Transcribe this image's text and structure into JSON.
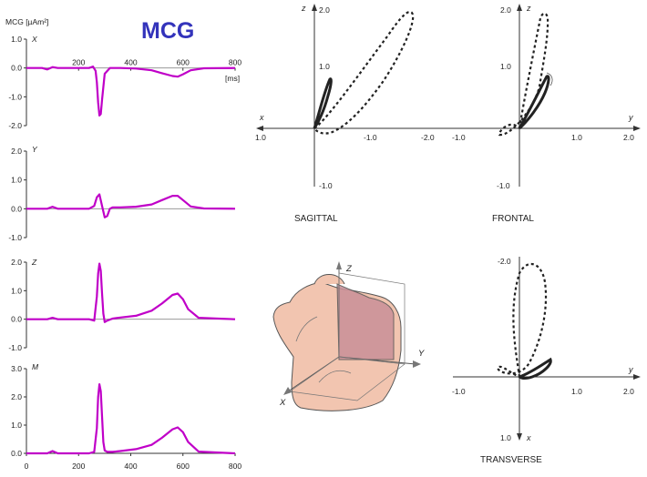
{
  "figure": {
    "title": "MCG",
    "unit_label": "MCG [µAm²]",
    "x_unit": "[ms]",
    "colors": {
      "trace": "#c000c8",
      "title": "#3333bb",
      "loop": "#222222",
      "axis": "#333333",
      "zero_line": "#999999",
      "torso_skin": "#f2c5b0",
      "torso_shade": "#c98f98"
    }
  },
  "chart_data": [
    {
      "type": "line",
      "name_label": "X",
      "x_range": [
        0,
        800
      ],
      "ylim": [
        -2.0,
        1.0
      ],
      "yticks": [
        "1.0",
        "0.0",
        "-1.0",
        "-2.0"
      ],
      "xticks": [
        "200",
        "400",
        "600",
        "800"
      ],
      "x_unit": "[ms]",
      "x": [
        0,
        60,
        80,
        100,
        120,
        200,
        240,
        255,
        265,
        270,
        275,
        280,
        285,
        290,
        300,
        320,
        360,
        420,
        480,
        520,
        560,
        580,
        600,
        630,
        680,
        800
      ],
      "y": [
        0,
        0,
        -0.05,
        0.03,
        0,
        0,
        0,
        0.05,
        -0.1,
        -0.5,
        -1.2,
        -1.65,
        -1.6,
        -1.1,
        -0.2,
        0,
        0,
        -0.02,
        -0.08,
        -0.18,
        -0.28,
        -0.3,
        -0.22,
        -0.08,
        -0.01,
        0
      ]
    },
    {
      "type": "line",
      "name_label": "Y",
      "x_range": [
        0,
        800
      ],
      "ylim": [
        -1.0,
        2.0
      ],
      "yticks": [
        "2.0",
        "1.0",
        "0.0",
        "-1.0"
      ],
      "x": [
        0,
        80,
        100,
        120,
        200,
        240,
        260,
        270,
        280,
        290,
        300,
        310,
        320,
        330,
        360,
        420,
        480,
        520,
        560,
        580,
        600,
        630,
        680,
        800
      ],
      "y": [
        0,
        0,
        0.07,
        0,
        0,
        0,
        0.1,
        0.4,
        0.5,
        0.1,
        -0.3,
        -0.25,
        0,
        0.05,
        0.05,
        0.07,
        0.15,
        0.3,
        0.45,
        0.45,
        0.3,
        0.08,
        0.01,
        0
      ]
    },
    {
      "type": "line",
      "name_label": "Z",
      "x_range": [
        0,
        800
      ],
      "ylim": [
        -1.0,
        2.0
      ],
      "yticks": [
        "2.0",
        "1.0",
        "0.0",
        "-1.0"
      ],
      "x": [
        0,
        80,
        100,
        120,
        200,
        240,
        260,
        270,
        275,
        280,
        285,
        290,
        295,
        300,
        310,
        330,
        360,
        420,
        480,
        520,
        560,
        580,
        600,
        620,
        660,
        800
      ],
      "y": [
        0,
        0,
        0.05,
        0,
        0,
        0,
        -0.05,
        0.8,
        1.6,
        1.95,
        1.7,
        0.9,
        0.2,
        -0.1,
        -0.05,
        0.02,
        0.06,
        0.12,
        0.3,
        0.55,
        0.85,
        0.9,
        0.7,
        0.35,
        0.05,
        0
      ]
    },
    {
      "type": "line",
      "name_label": "M",
      "x_range": [
        0,
        800
      ],
      "ylim": [
        0.0,
        3.0
      ],
      "yticks": [
        "3.0",
        "2.0",
        "1.0",
        "0.0"
      ],
      "xticks": [
        "0",
        "200",
        "400",
        "600",
        "800"
      ],
      "x": [
        0,
        80,
        100,
        120,
        200,
        240,
        260,
        270,
        275,
        280,
        285,
        290,
        295,
        300,
        310,
        330,
        360,
        420,
        480,
        520,
        560,
        580,
        600,
        620,
        660,
        800
      ],
      "y": [
        0,
        0,
        0.08,
        0,
        0,
        0,
        0.05,
        0.9,
        2.0,
        2.45,
        2.2,
        1.3,
        0.4,
        0.1,
        0.05,
        0.05,
        0.08,
        0.15,
        0.3,
        0.55,
        0.85,
        0.92,
        0.75,
        0.4,
        0.06,
        0
      ]
    }
  ],
  "loops": {
    "sagittal": {
      "label": "SAGITTAL",
      "h_axis": "x",
      "v_axis": "z",
      "hticks": [
        "1.0",
        "-1.0",
        "-2.0"
      ],
      "vticks": [
        "2.0",
        "1.0",
        "-1.0"
      ]
    },
    "frontal": {
      "label": "FRONTAL",
      "h_axis": "y",
      "v_axis": "z",
      "hticks": [
        "-1.0",
        "1.0",
        "2.0"
      ],
      "vticks": [
        "2.0",
        "1.0",
        "-1.0"
      ]
    },
    "transverse": {
      "label": "TRANSVERSE",
      "h_axis": "y",
      "v_axis": "x",
      "hticks": [
        "-1.0",
        "1.0",
        "2.0"
      ],
      "vticks": [
        "-2.0",
        "1.0"
      ]
    }
  },
  "torso": {
    "axis_labels": [
      "Z",
      "Y",
      "X"
    ]
  }
}
